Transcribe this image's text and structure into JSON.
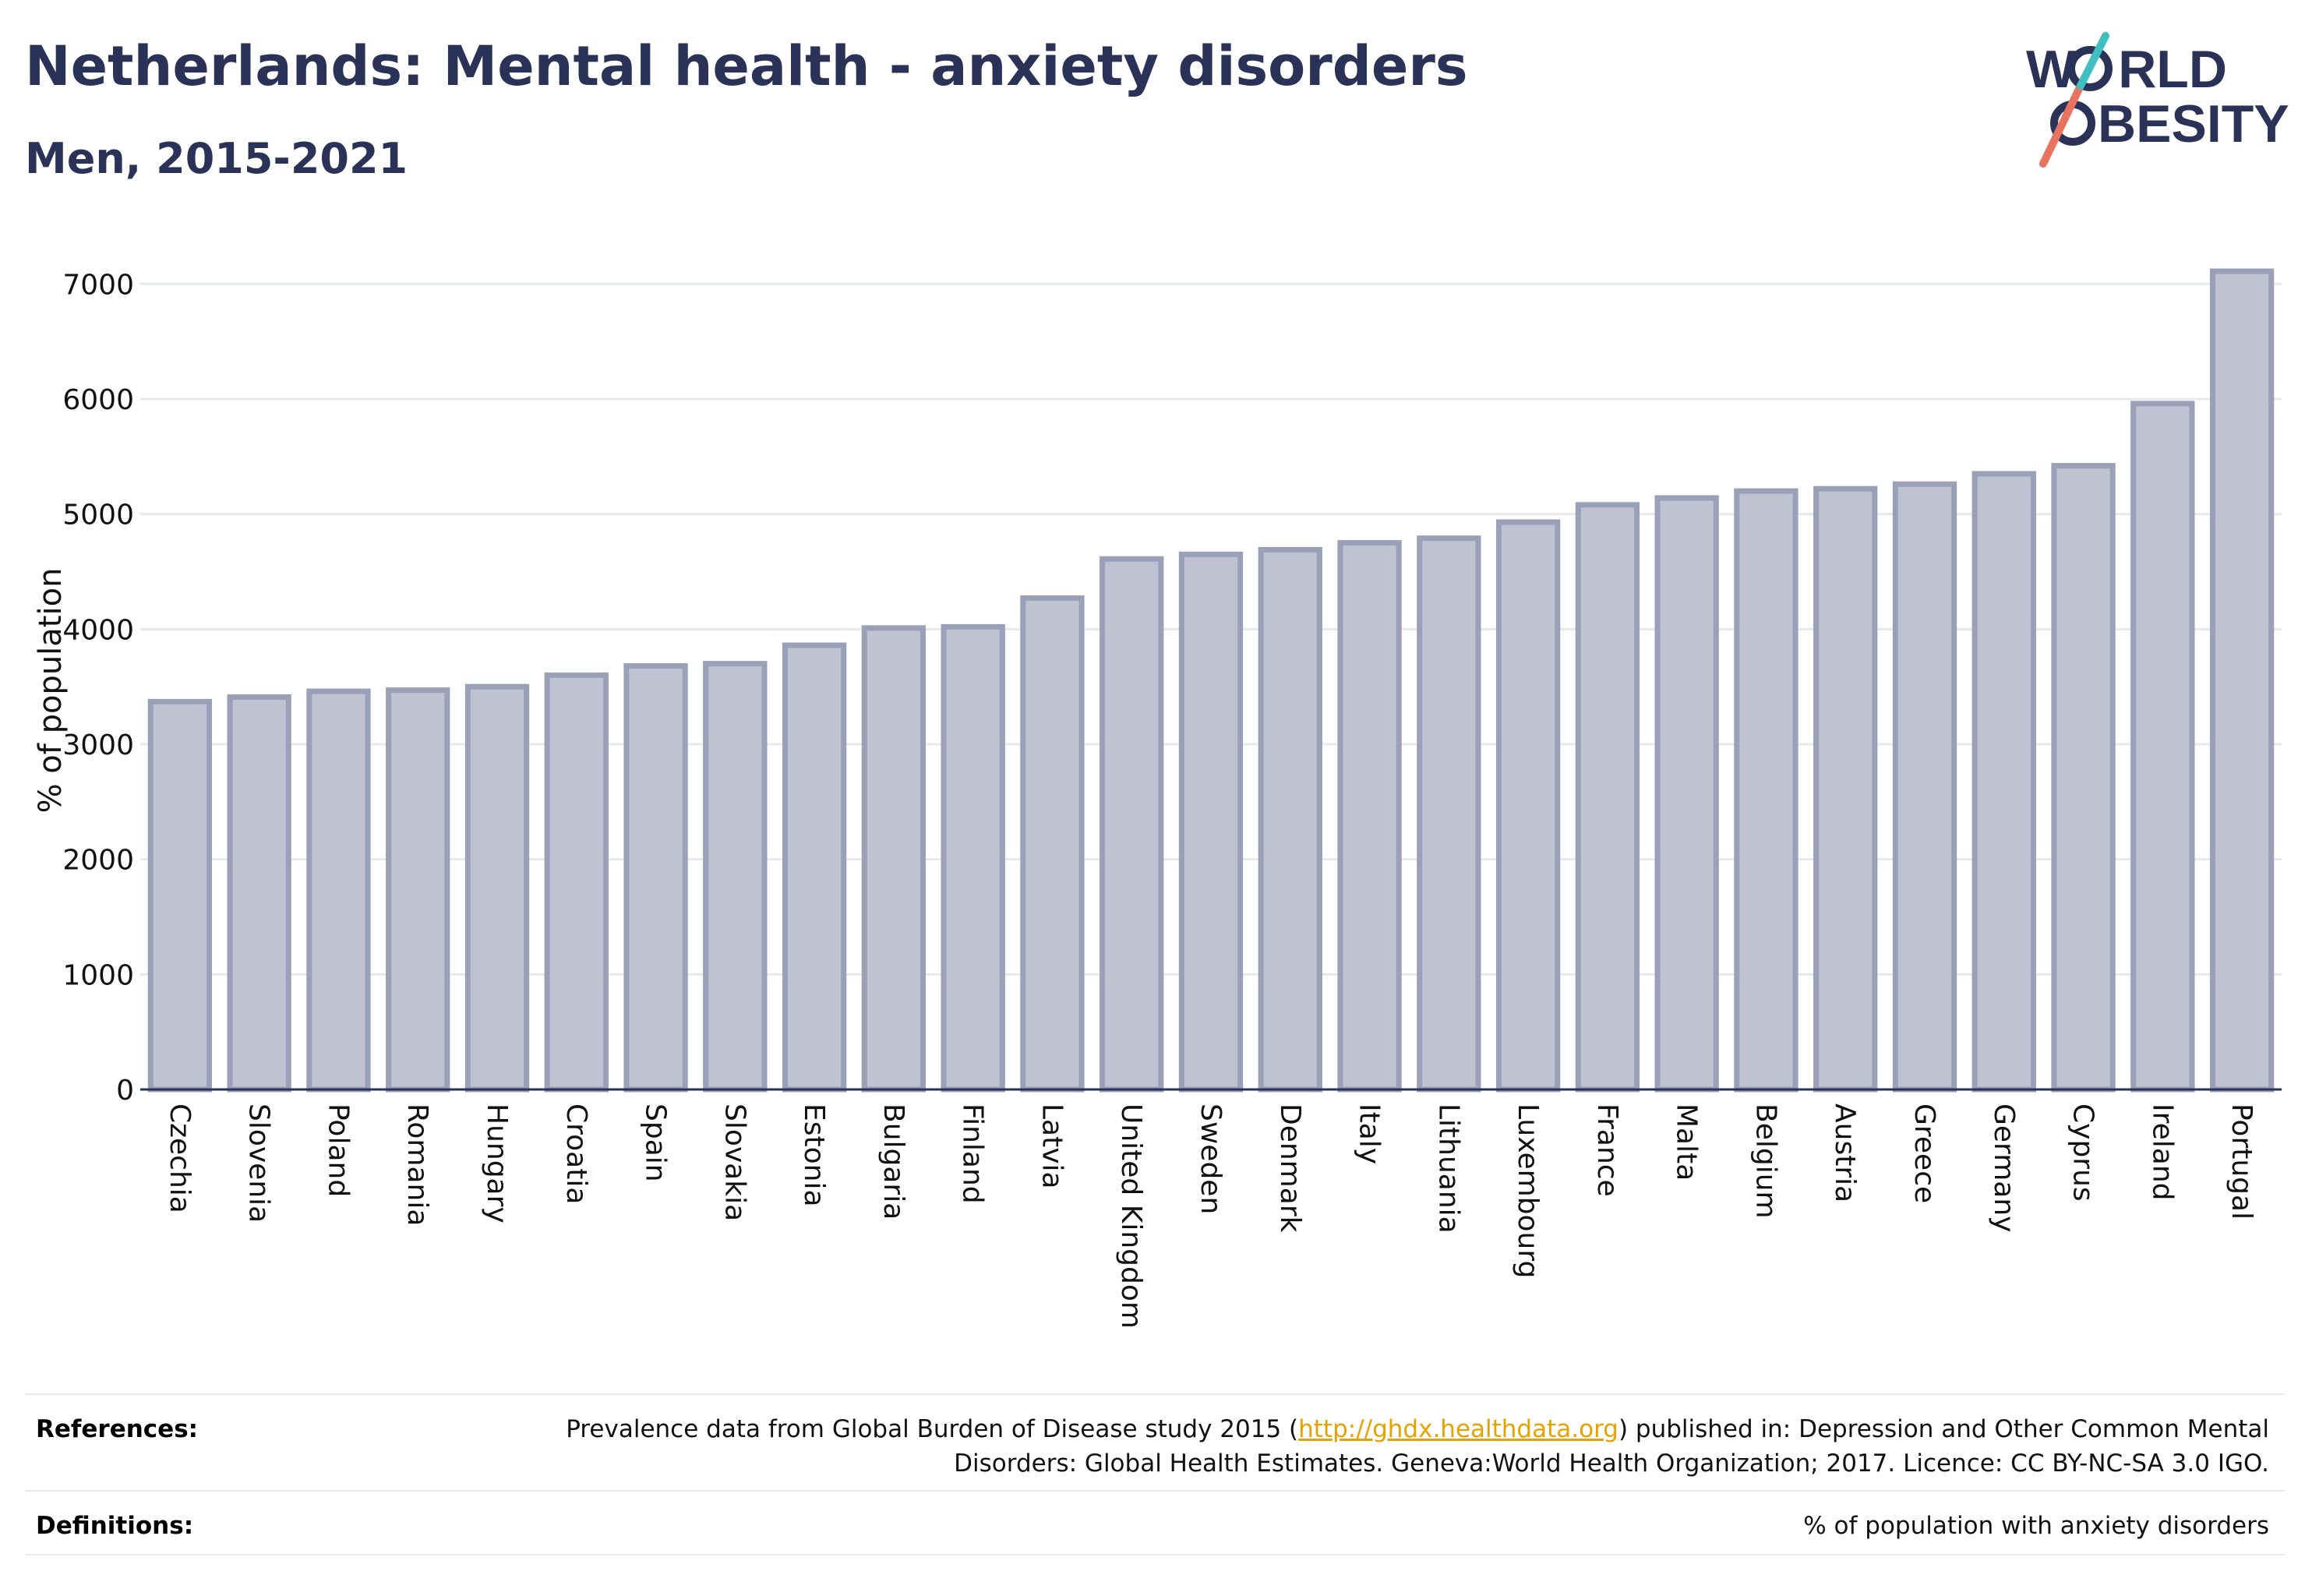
{
  "header": {
    "title": "Netherlands: Mental health - anxiety disorders",
    "subtitle": "Men, 2015-2021"
  },
  "logo": {
    "line1_a": "W",
    "line1_b": "RLD",
    "line2_a": "",
    "line2_b": "BESITY",
    "slash_colors": [
      "#e8735e",
      "#3fbfbf"
    ]
  },
  "chart_data": {
    "type": "bar",
    "ylabel": "% of population",
    "xlabel": "",
    "ylim": [
      0,
      7300
    ],
    "yticks": [
      0,
      1000,
      2000,
      3000,
      4000,
      5000,
      6000,
      7000
    ],
    "grid": true,
    "bar_color": "#bec2d1",
    "bar_edge_color": "#9aa0b8",
    "categories": [
      "Czechia",
      "Slovenia",
      "Poland",
      "Romania",
      "Hungary",
      "Croatia",
      "Spain",
      "Slovakia",
      "Estonia",
      "Bulgaria",
      "Finland",
      "Latvia",
      "United Kingdom",
      "Sweden",
      "Denmark",
      "Italy",
      "Lithuania",
      "Luxembourg",
      "France",
      "Malta",
      "Belgium",
      "Austria",
      "Greece",
      "Germany",
      "Cyprus",
      "Ireland",
      "Portugal"
    ],
    "values": [
      3370,
      3410,
      3460,
      3470,
      3500,
      3600,
      3680,
      3700,
      3860,
      4010,
      4020,
      4270,
      4610,
      4650,
      4690,
      4750,
      4790,
      4930,
      5080,
      5140,
      5200,
      5220,
      5260,
      5350,
      5420,
      5960,
      7110
    ]
  },
  "footer": {
    "references_label": "References:",
    "references_text_before": "Prevalence data from Global Burden of Disease study 2015 (",
    "references_link": "http://ghdx.healthdata.org",
    "references_text_after": ") published in: Depression and Other Common Mental Disorders: Global Health Estimates. Geneva:World Health Organization; 2017. Licence: CC BY-NC-SA 3.0 IGO.",
    "definitions_label": "Definitions:",
    "definitions_text": "% of population with anxiety disorders"
  }
}
